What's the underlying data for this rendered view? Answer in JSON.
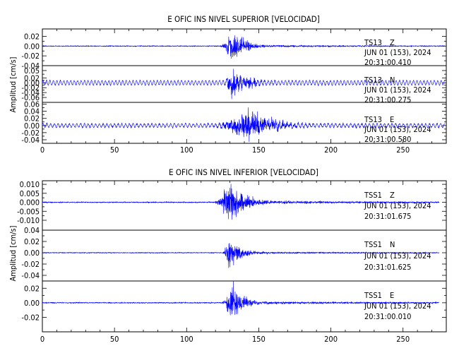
{
  "colors": {
    "trace": "#0000ff",
    "axis": "#000000",
    "background": "#ffffff"
  },
  "chart_data": [
    {
      "type": "line",
      "title": "E OFIC INS NIVEL SUPERIOR [VELOCIDAD]",
      "ylabel": "Amplitud [cm/s]",
      "xlabel": "",
      "xlim": [
        0,
        280
      ],
      "xticks": [
        0,
        50,
        100,
        150,
        200,
        250
      ],
      "grid": false,
      "panels": [
        {
          "station": "TS13",
          "component": "Z",
          "date": "JUN 01 (153), 2024",
          "time": "20:31:00.410",
          "ylim": [
            -0.04,
            0.035
          ],
          "yticks": [
            -0.04,
            -0.02,
            0.0,
            0.02
          ],
          "ytick_labels": [
            "-0.04",
            "-0.02",
            "0.00",
            "0.02"
          ],
          "signal": {
            "noise": 0.001,
            "peak": 0.03,
            "onset": 123,
            "peak_time": 131,
            "decay": 9,
            "coda": 0.0015,
            "osc_period": 0
          }
        },
        {
          "station": "TS13",
          "component": "N",
          "date": "JUN 01 (153), 2024",
          "time": "20:31:00.275",
          "ylim": [
            -0.08,
            0.07
          ],
          "yticks": [
            -0.06,
            -0.04,
            -0.02,
            0.0,
            0.02,
            0.05
          ],
          "ytick_labels": [
            "-0.06",
            "-0.04",
            "-0.02",
            "0.00",
            "0.02",
            "0.05"
          ],
          "signal": {
            "noise": 0.002,
            "peak": 0.055,
            "onset": 125,
            "peak_time": 132,
            "decay": 10,
            "coda": 0.0015,
            "osc_period": 2.4,
            "osc_amp": 0.009
          }
        },
        {
          "station": "TS13",
          "component": "E",
          "date": "JUN 01 (153), 2024",
          "time": "20:31:00.580",
          "ylim": [
            -0.05,
            0.065
          ],
          "yticks": [
            -0.04,
            -0.02,
            0.0,
            0.02,
            0.04,
            0.06
          ],
          "ytick_labels": [
            "-0.04",
            "-0.02",
            "0.00",
            "0.02",
            "0.04",
            "0.06"
          ],
          "signal": {
            "noise": 0.002,
            "peak": 0.04,
            "onset": 118,
            "peak_time": 143,
            "decay": 16,
            "coda": 0.0015,
            "osc_period": 2.6,
            "osc_amp": 0.005
          }
        }
      ]
    },
    {
      "type": "line",
      "title": "E OFIC INS NIVEL INFERIOR [VELOCIDAD]",
      "ylabel": "Amplitud [cm/s]",
      "xlabel": "",
      "xlim": [
        0,
        280
      ],
      "xticks": [
        0,
        50,
        100,
        150,
        200,
        250
      ],
      "grid": false,
      "panels": [
        {
          "station": "TSS1",
          "component": "Z",
          "date": "JUN 01 (153), 2024",
          "time": "20:31:01.675",
          "ylim": [
            -0.0155,
            0.012
          ],
          "yticks": [
            -0.01,
            -0.005,
            0.0,
            0.005,
            0.01
          ],
          "ytick_labels": [
            "-0.010",
            "-0.005",
            "0.000",
            "0.005",
            "0.010"
          ],
          "signal": {
            "noise": 0.0003,
            "peak": 0.0105,
            "onset": 120,
            "peak_time": 129,
            "decay": 12,
            "coda": 0.0008,
            "osc_period": 0
          }
        },
        {
          "station": "TSS1",
          "component": "N",
          "date": "JUN 01 (153), 2024",
          "time": "20:31:01.625",
          "ylim": [
            -0.05,
            0.04
          ],
          "yticks": [
            -0.04,
            -0.02,
            0.0,
            0.02,
            0.04
          ],
          "ytick_labels": [
            "-0.04",
            "-0.02",
            "0.00",
            "0.02",
            "0.04"
          ],
          "signal": {
            "noise": 0.0008,
            "peak": 0.028,
            "onset": 125,
            "peak_time": 130,
            "decay": 7,
            "coda": 0.0015,
            "osc_period": 0
          }
        },
        {
          "station": "TSS1",
          "component": "E",
          "date": "JUN 01 (153), 2024",
          "time": "20:31:00.010",
          "ylim": [
            -0.04,
            0.03
          ],
          "yticks": [
            -0.02,
            0.0,
            0.02
          ],
          "ytick_labels": [
            "-0.02",
            "0.00",
            "0.02"
          ],
          "signal": {
            "noise": 0.0008,
            "peak": 0.025,
            "onset": 125,
            "peak_time": 131,
            "decay": 8,
            "coda": 0.0015,
            "osc_period": 0
          }
        }
      ]
    }
  ]
}
